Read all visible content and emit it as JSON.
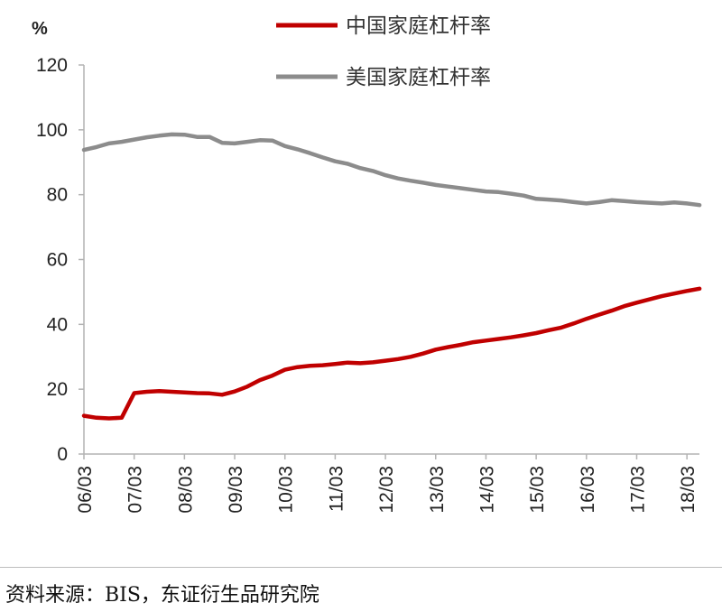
{
  "chart_data": {
    "type": "line",
    "y_unit": "%",
    "ylim": [
      0,
      120
    ],
    "y_ticks": [
      0,
      20,
      40,
      60,
      80,
      100,
      120
    ],
    "x_ticks": [
      "06/03",
      "07/03",
      "08/03",
      "09/03",
      "10/03",
      "11/03",
      "12/03",
      "13/03",
      "14/03",
      "15/03",
      "16/03",
      "17/03",
      "18/03"
    ],
    "legend_position": "top-right",
    "grid": false,
    "series": [
      {
        "name": "中国家庭杠杆率",
        "color": "#c00000",
        "points": [
          [
            "06/03",
            11.8
          ],
          [
            "06/06",
            11.2
          ],
          [
            "06/09",
            11.0
          ],
          [
            "06/12",
            11.2
          ],
          [
            "07/03",
            18.8
          ],
          [
            "07/06",
            19.2
          ],
          [
            "07/09",
            19.4
          ],
          [
            "07/12",
            19.2
          ],
          [
            "08/03",
            19.0
          ],
          [
            "08/06",
            18.8
          ],
          [
            "08/09",
            18.7
          ],
          [
            "08/12",
            18.3
          ],
          [
            "09/03",
            19.3
          ],
          [
            "09/06",
            20.8
          ],
          [
            "09/09",
            22.8
          ],
          [
            "09/12",
            24.2
          ],
          [
            "10/03",
            26.0
          ],
          [
            "10/06",
            26.8
          ],
          [
            "10/09",
            27.2
          ],
          [
            "10/12",
            27.4
          ],
          [
            "11/03",
            27.8
          ],
          [
            "11/06",
            28.2
          ],
          [
            "11/09",
            28.0
          ],
          [
            "11/12",
            28.3
          ],
          [
            "12/03",
            28.8
          ],
          [
            "12/06",
            29.3
          ],
          [
            "12/09",
            30.0
          ],
          [
            "12/12",
            31.0
          ],
          [
            "13/03",
            32.2
          ],
          [
            "13/06",
            33.0
          ],
          [
            "13/09",
            33.7
          ],
          [
            "13/12",
            34.5
          ],
          [
            "14/03",
            35.0
          ],
          [
            "14/06",
            35.5
          ],
          [
            "14/09",
            36.0
          ],
          [
            "14/12",
            36.6
          ],
          [
            "15/03",
            37.3
          ],
          [
            "15/06",
            38.2
          ],
          [
            "15/09",
            39.0
          ],
          [
            "15/12",
            40.3
          ],
          [
            "16/03",
            41.7
          ],
          [
            "16/06",
            43.0
          ],
          [
            "16/09",
            44.2
          ],
          [
            "16/12",
            45.6
          ],
          [
            "17/03",
            46.7
          ],
          [
            "17/06",
            47.7
          ],
          [
            "17/09",
            48.7
          ],
          [
            "17/12",
            49.5
          ],
          [
            "18/03",
            50.3
          ],
          [
            "18/06",
            51.0
          ]
        ]
      },
      {
        "name": "美国家庭杠杆率",
        "color": "#8c8c8c",
        "points": [
          [
            "06/03",
            93.8
          ],
          [
            "06/06",
            94.7
          ],
          [
            "06/09",
            95.8
          ],
          [
            "06/12",
            96.3
          ],
          [
            "07/03",
            97.0
          ],
          [
            "07/06",
            97.7
          ],
          [
            "07/09",
            98.2
          ],
          [
            "07/12",
            98.6
          ],
          [
            "08/03",
            98.5
          ],
          [
            "08/06",
            97.8
          ],
          [
            "08/09",
            97.8
          ],
          [
            "08/12",
            96.0
          ],
          [
            "09/03",
            95.8
          ],
          [
            "09/06",
            96.3
          ],
          [
            "09/09",
            96.8
          ],
          [
            "09/12",
            96.7
          ],
          [
            "10/03",
            95.0
          ],
          [
            "10/06",
            94.0
          ],
          [
            "10/09",
            92.8
          ],
          [
            "10/12",
            91.5
          ],
          [
            "11/03",
            90.3
          ],
          [
            "11/06",
            89.5
          ],
          [
            "11/09",
            88.2
          ],
          [
            "11/12",
            87.3
          ],
          [
            "12/03",
            86.0
          ],
          [
            "12/06",
            85.0
          ],
          [
            "12/09",
            84.3
          ],
          [
            "12/12",
            83.7
          ],
          [
            "13/03",
            83.0
          ],
          [
            "13/06",
            82.5
          ],
          [
            "13/09",
            82.0
          ],
          [
            "13/12",
            81.5
          ],
          [
            "14/03",
            81.0
          ],
          [
            "14/06",
            80.8
          ],
          [
            "14/09",
            80.3
          ],
          [
            "14/12",
            79.7
          ],
          [
            "15/03",
            78.7
          ],
          [
            "15/06",
            78.5
          ],
          [
            "15/09",
            78.2
          ],
          [
            "15/12",
            77.7
          ],
          [
            "16/03",
            77.3
          ],
          [
            "16/06",
            77.7
          ],
          [
            "16/09",
            78.3
          ],
          [
            "16/12",
            78.0
          ],
          [
            "17/03",
            77.7
          ],
          [
            "17/06",
            77.5
          ],
          [
            "17/09",
            77.3
          ],
          [
            "17/12",
            77.6
          ],
          [
            "18/03",
            77.3
          ],
          [
            "18/06",
            76.8
          ]
        ]
      }
    ]
  },
  "source": "资料来源：BIS，东证衍生品研究院"
}
